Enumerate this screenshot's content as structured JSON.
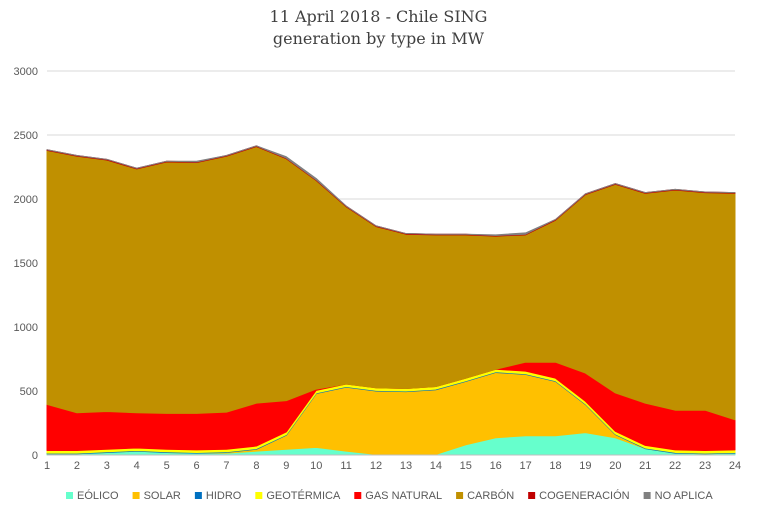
{
  "chart_data": {
    "type": "area",
    "title": "11 April 2018 - Chile SING",
    "subtitle": "generation by type in MW",
    "xlabel": "",
    "ylabel": "",
    "x": [
      1,
      2,
      3,
      4,
      5,
      6,
      7,
      8,
      9,
      10,
      11,
      12,
      13,
      14,
      15,
      16,
      17,
      18,
      19,
      20,
      21,
      22,
      23,
      24
    ],
    "ylim": [
      0,
      3000
    ],
    "yticks": [
      0,
      500,
      1000,
      1500,
      2000,
      2500,
      3000
    ],
    "grid": true,
    "stacked": true,
    "legend_position": "bottom",
    "series": [
      {
        "name": "EÓLICO",
        "color": "#66FFCC",
        "values": [
          10,
          10,
          20,
          30,
          20,
          15,
          15,
          30,
          45,
          60,
          30,
          5,
          5,
          5,
          80,
          135,
          150,
          150,
          175,
          135,
          50,
          15,
          10,
          15
        ]
      },
      {
        "name": "SOLAR",
        "color": "#FFC000",
        "values": [
          0,
          0,
          0,
          0,
          0,
          0,
          5,
          15,
          110,
          420,
          500,
          495,
          490,
          505,
          495,
          510,
          480,
          425,
          220,
          25,
          0,
          0,
          0,
          0
        ]
      },
      {
        "name": "HIDRO",
        "color": "#0070C0",
        "values": [
          5,
          5,
          5,
          5,
          5,
          5,
          5,
          5,
          5,
          5,
          5,
          5,
          5,
          5,
          5,
          5,
          5,
          5,
          5,
          5,
          5,
          5,
          5,
          5
        ]
      },
      {
        "name": "GEOTÉRMICA",
        "color": "#FFFF00",
        "values": [
          20,
          20,
          20,
          20,
          20,
          20,
          20,
          20,
          20,
          20,
          20,
          20,
          20,
          20,
          20,
          20,
          20,
          20,
          20,
          20,
          20,
          20,
          20,
          20
        ]
      },
      {
        "name": "GAS NATURAL",
        "color": "#FF0000",
        "values": [
          360,
          295,
          295,
          275,
          280,
          285,
          290,
          335,
          245,
          10,
          0,
          0,
          0,
          0,
          0,
          0,
          70,
          125,
          220,
          300,
          330,
          310,
          315,
          235
        ]
      },
      {
        "name": "CARBÓN",
        "color": "#C09000",
        "values": [
          1985,
          2005,
          1965,
          1905,
          1965,
          1960,
          2000,
          2005,
          1890,
          1630,
          1385,
          1260,
          1205,
          1185,
          1120,
          1040,
          995,
          1110,
          1395,
          1630,
          1640,
          1720,
          1700,
          1770
        ]
      },
      {
        "name": "COGENERACIÓN",
        "color": "#C00000",
        "values": [
          5,
          5,
          5,
          5,
          5,
          5,
          5,
          5,
          5,
          5,
          5,
          5,
          5,
          5,
          5,
          5,
          5,
          5,
          5,
          5,
          5,
          5,
          5,
          5
        ]
      },
      {
        "name": "NO APLICA",
        "color": "#808080",
        "values": [
          0,
          0,
          0,
          0,
          0,
          5,
          0,
          0,
          10,
          10,
          0,
          0,
          0,
          0,
          0,
          5,
          10,
          0,
          0,
          0,
          0,
          0,
          0,
          0
        ]
      }
    ]
  }
}
